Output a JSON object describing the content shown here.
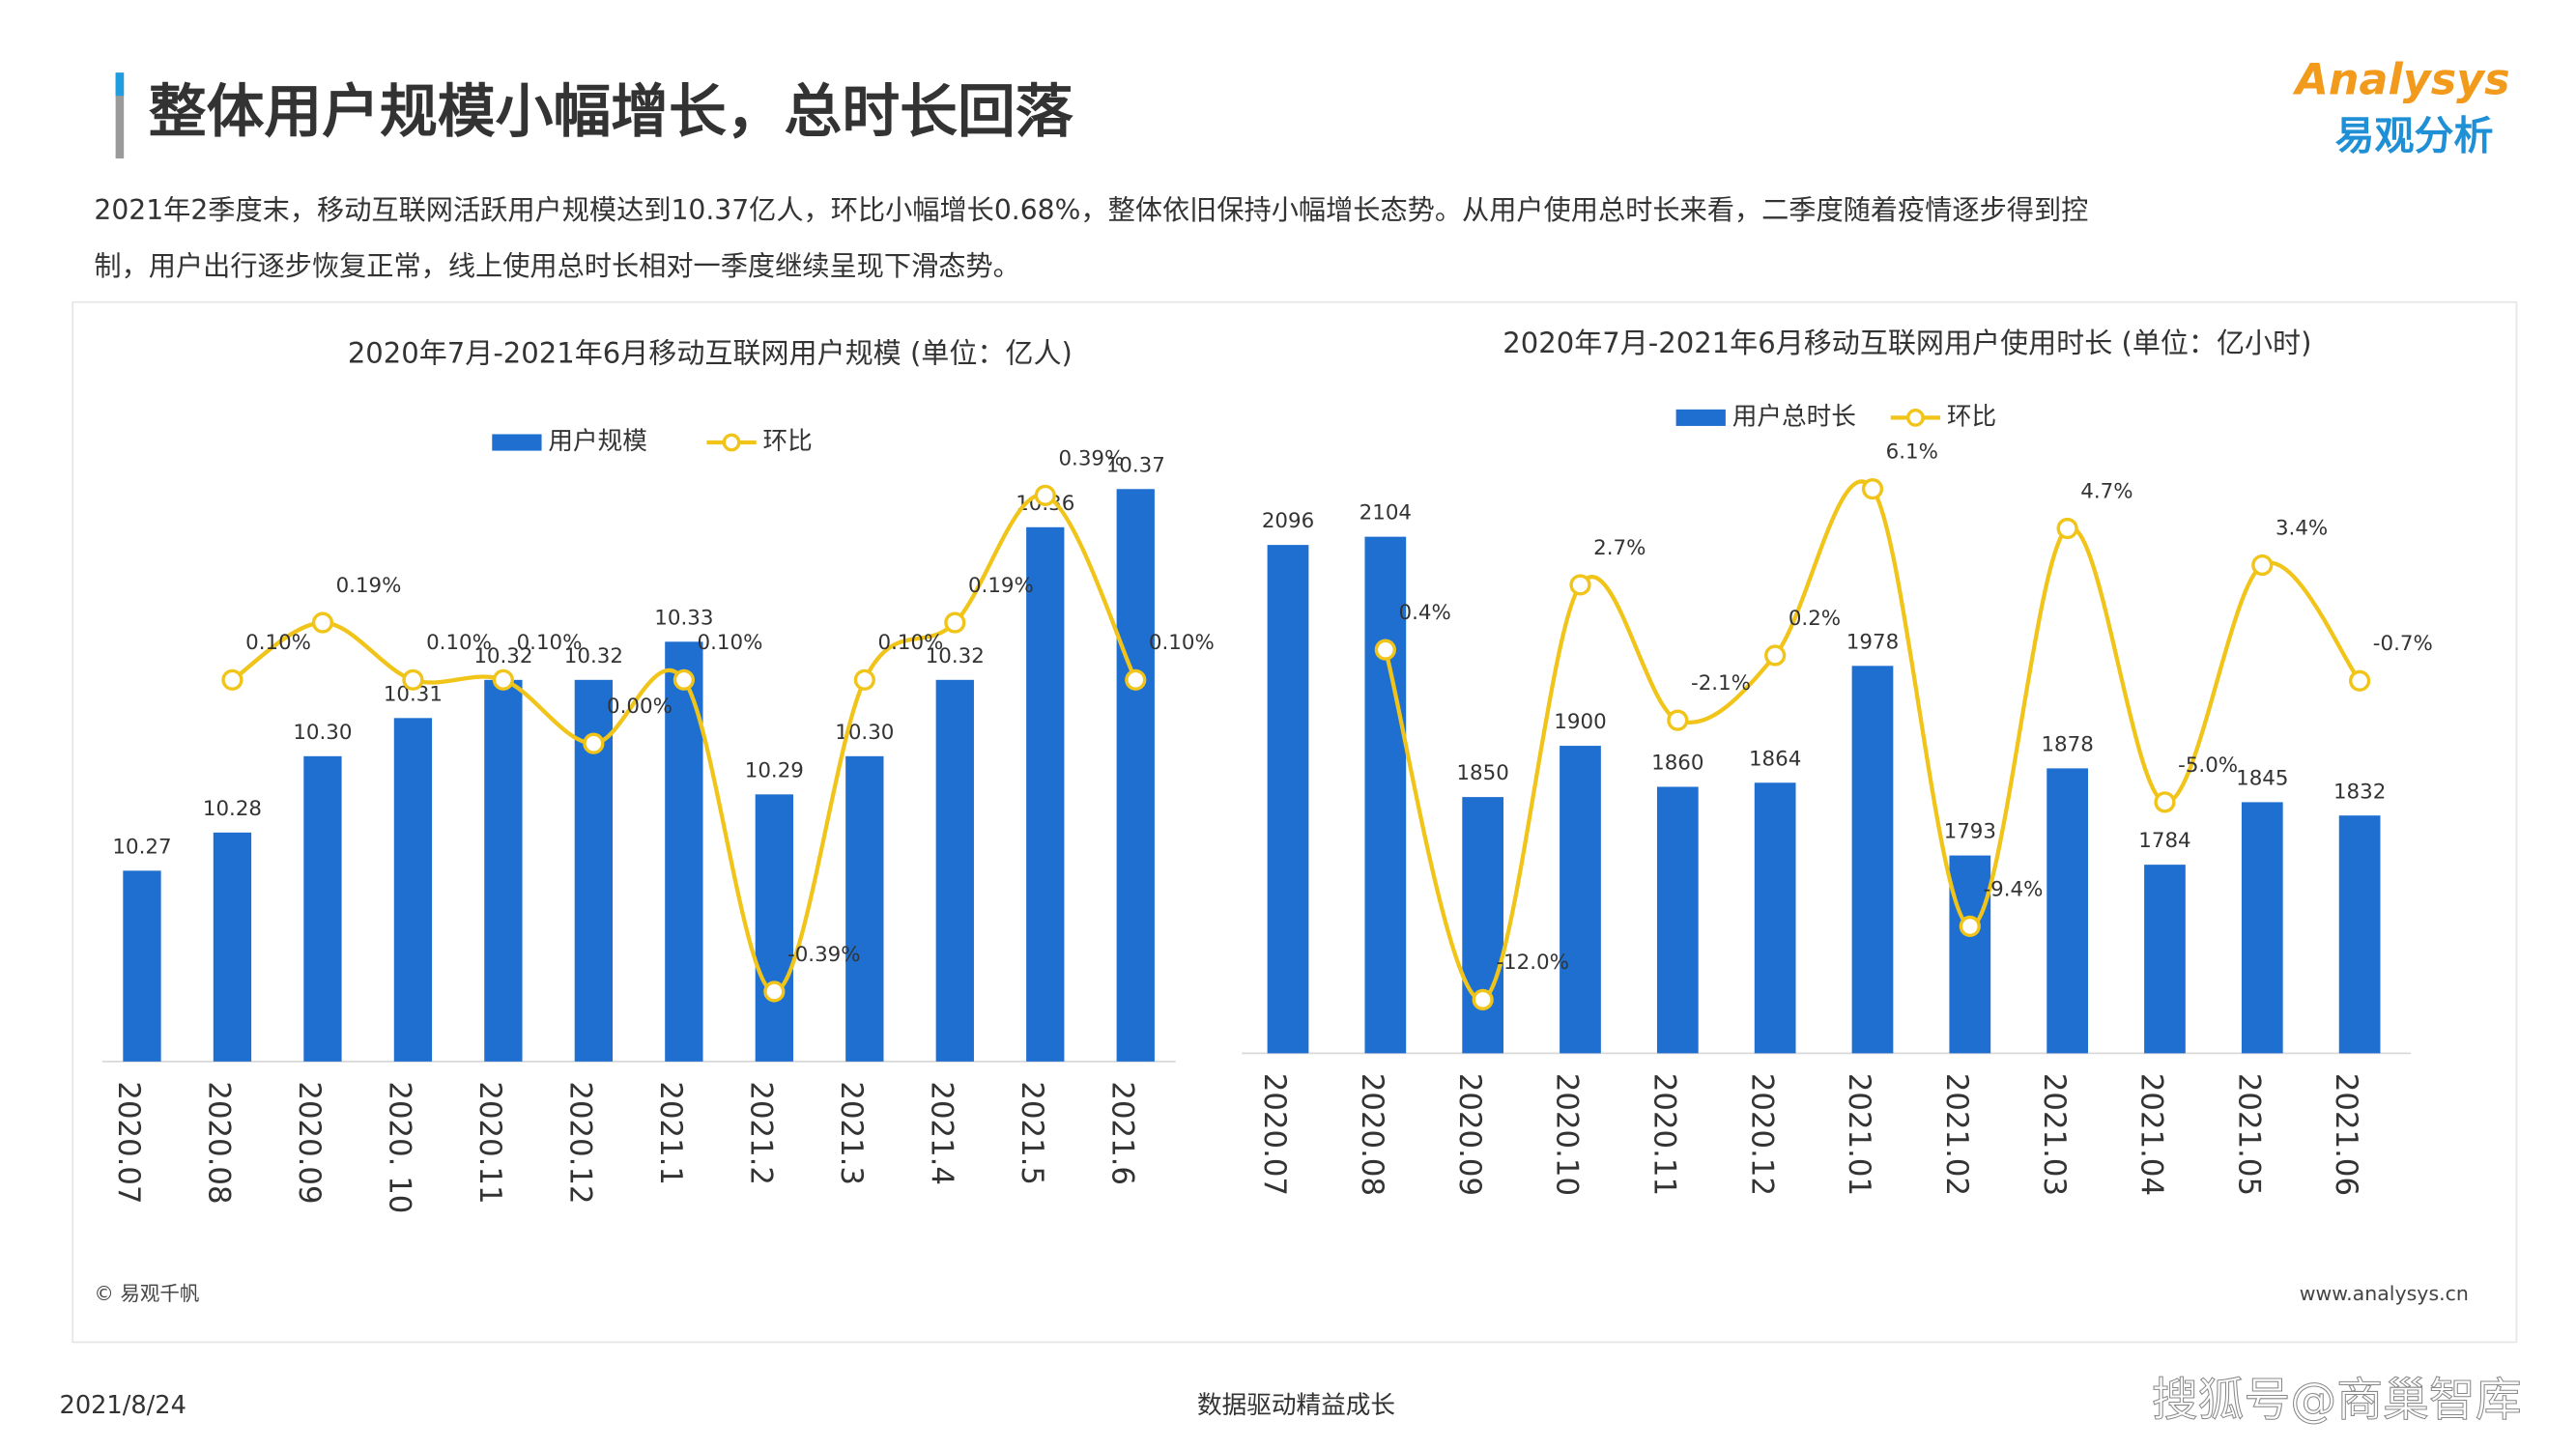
{
  "header": {
    "title": "整体用户规模小幅增长，总时长回落",
    "description_lines": [
      "2021年2季度末，移动互联网活跃用户规模达到10.37亿人，环比小幅增长0.68%，整体依旧保持小幅增长态势。从用户使用总时长来看，二季度随着疫情逐步得到控",
      "制，用户出行逐步恢复正常，线上使用总时长相对一季度继续呈现下滑态势。"
    ],
    "logo": "Analysys",
    "logo_cn": "易观分析"
  },
  "chart_data": [
    {
      "type": "bar",
      "title": "2020年7月-2021年6月移动互联网用户规模 (单位：亿人)",
      "categories": [
        "2020.07",
        "2020.08",
        "2020.09",
        "2020. 10",
        "2020.11",
        "2020.12",
        "2021.1",
        "2021.2",
        "2021.3",
        "2021.4",
        "2021.5",
        "2021.6"
      ],
      "ylim": [
        10.22,
        10.39
      ],
      "y2lim": [
        -0.5,
        0.52
      ],
      "series": [
        {
          "name": "用户规模",
          "type": "bar",
          "color": "#1f6fd0",
          "values": [
            10.27,
            10.28,
            10.3,
            10.31,
            10.32,
            10.32,
            10.33,
            10.29,
            10.3,
            10.32,
            10.36,
            10.37
          ],
          "value_labels": [
            "10.27",
            "10.28",
            "10.30",
            "10.31",
            "10.32",
            "10.32",
            "10.33",
            "10.29",
            "10.30",
            "10.32",
            "10.36",
            "10.37"
          ]
        },
        {
          "name": "环比",
          "type": "line",
          "axis": "y2",
          "color": "#f0c419",
          "values": [
            null,
            0.1,
            0.19,
            0.1,
            0.1,
            0.0,
            0.1,
            -0.39,
            0.1,
            0.19,
            0.39,
            0.1
          ],
          "value_labels": [
            null,
            "0.10%",
            "0.19%",
            "0.10%",
            "0.10%",
            "0.00%",
            "0.10%",
            "-0.39%",
            "0.10%",
            "0.19%",
            "0.39%",
            "0.10%"
          ]
        }
      ]
    },
    {
      "type": "bar",
      "title": "2020年7月-2021年6月移动互联网用户使用时长 (单位：亿小时)",
      "categories": [
        "2020.07",
        "2020.08",
        "2020.09",
        "2020.10",
        "2020.11",
        "2020.12",
        "2021.01",
        "2021.02",
        "2021.03",
        "2021.04",
        "2021.05",
        "2021.06"
      ],
      "ylim": [
        1600,
        2225
      ],
      "y2lim": [
        -13.9,
        8.8
      ],
      "series": [
        {
          "name": "用户总时长",
          "type": "bar",
          "color": "#1f6fd0",
          "values": [
            2096,
            2104,
            1850,
            1900,
            1860,
            1864,
            1978,
            1793,
            1878,
            1784,
            1845,
            1832
          ]
        },
        {
          "name": "环比",
          "type": "line",
          "axis": "y2",
          "color": "#f0c419",
          "values": [
            null,
            0.4,
            -12.0,
            2.7,
            -2.1,
            0.2,
            6.1,
            -9.4,
            4.7,
            -5.0,
            3.4,
            -0.7
          ],
          "value_labels": [
            null,
            "0.4%",
            "-12.0%",
            "2.7%",
            "-2.1%",
            "0.2%",
            "6.1%",
            "-9.4%",
            "4.7%",
            "-5.0%",
            "3.4%",
            "-0.7%"
          ]
        }
      ]
    }
  ],
  "footer": {
    "source": "© 易观千帆",
    "site": "www.analysys.cn",
    "date": "2021/8/24",
    "slogan": "数据驱动精益成长",
    "watermark": "搜狐号@商巢智库"
  }
}
